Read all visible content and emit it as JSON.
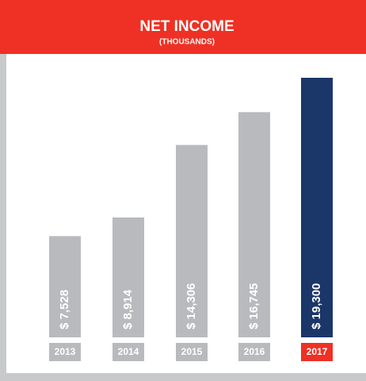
{
  "chart_data": {
    "type": "bar",
    "title": "NET INCOME",
    "subtitle": "(THOUSANDS)",
    "categories": [
      "2013",
      "2014",
      "2015",
      "2016",
      "2017"
    ],
    "values": [
      7528,
      8914,
      14306,
      16745,
      19300
    ],
    "value_labels": [
      "$ 7,528",
      "$ 8,914",
      "$ 14,306",
      "$ 16,745",
      "$ 19,300"
    ],
    "colors": [
      "#b9babd",
      "#b9babd",
      "#b9babd",
      "#b9babd",
      "#1b3668"
    ],
    "label_colors": [
      "#b9babd",
      "#b9babd",
      "#b9babd",
      "#b9babd",
      "#ee3124"
    ]
  }
}
